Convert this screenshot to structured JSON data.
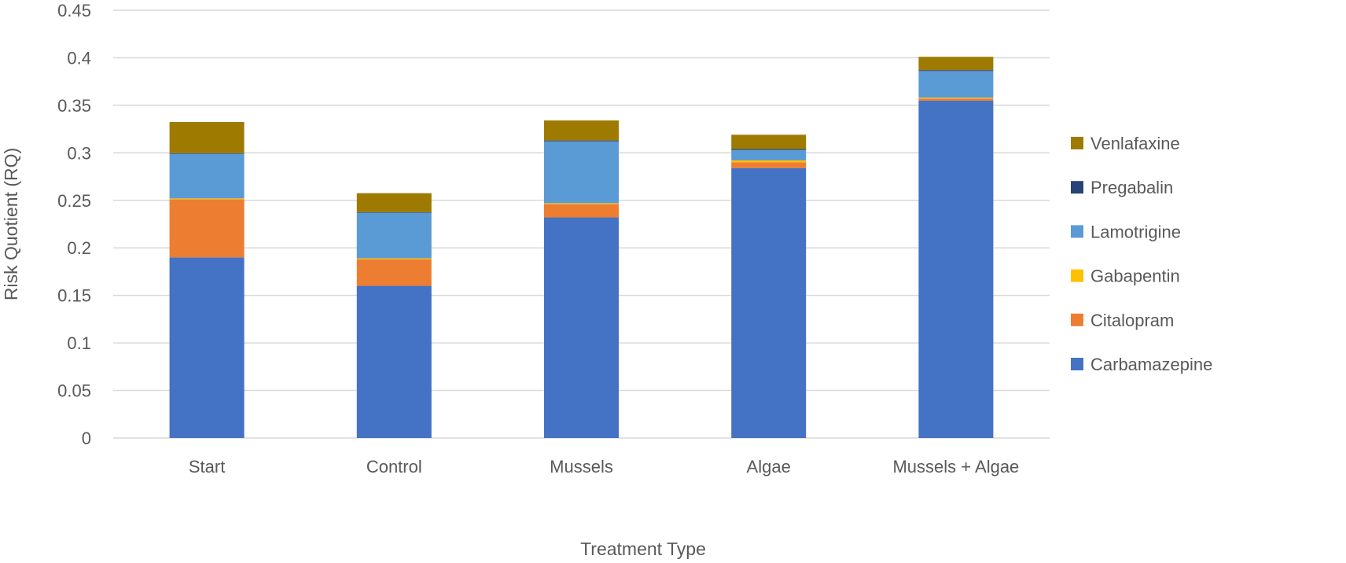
{
  "chart_data": {
    "type": "bar",
    "stacked": true,
    "title": "",
    "xlabel": "Treatment Type",
    "ylabel": "Risk Quotient (RQ)",
    "ylim": [
      0,
      0.45
    ],
    "yticks": [
      "0",
      "0.05",
      "0.1",
      "0.15",
      "0.2",
      "0.25",
      "0.3",
      "0.35",
      "0.4",
      "0.45"
    ],
    "grid": true,
    "legend_position": "right",
    "categories": [
      "Start",
      "Control",
      "Mussels",
      "Algae",
      "Mussels + Algae"
    ],
    "series": [
      {
        "name": "Carbamazepine",
        "color": "#4472C4",
        "values": [
          0.19,
          0.16,
          0.232,
          0.284,
          0.355
        ]
      },
      {
        "name": "Citalopram",
        "color": "#ED7D31",
        "values": [
          0.061,
          0.028,
          0.014,
          0.006,
          0.002
        ]
      },
      {
        "name": "Gabapentin",
        "color": "#FFC000",
        "values": [
          0.001,
          0.001,
          0.001,
          0.002,
          0.001
        ]
      },
      {
        "name": "Lamotrigine",
        "color": "#5B9BD5",
        "values": [
          0.047,
          0.048,
          0.065,
          0.011,
          0.028
        ]
      },
      {
        "name": "Pregabalin",
        "color": "#264478",
        "values": [
          0.0005,
          0.0005,
          0.001,
          0.001,
          0.001
        ]
      },
      {
        "name": "Venlafaxine",
        "color": "#9E7B00",
        "values": [
          0.033,
          0.02,
          0.021,
          0.015,
          0.014
        ]
      }
    ]
  }
}
